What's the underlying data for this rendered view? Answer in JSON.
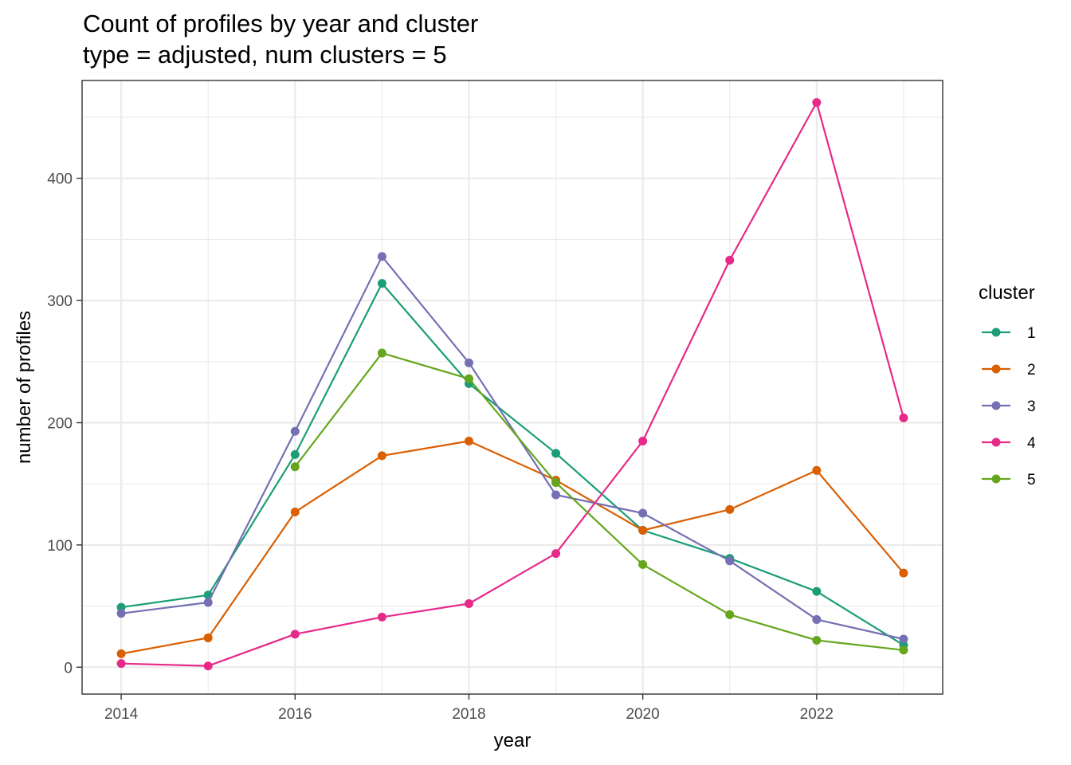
{
  "chart_data": {
    "type": "line",
    "title": "Count of profiles by year and cluster",
    "subtitle": "type = adjusted, num clusters = 5",
    "xlabel": "year",
    "ylabel": "number of profiles",
    "xlim": [
      2013.55,
      2023.45
    ],
    "ylim": [
      -22,
      480
    ],
    "x_ticks": [
      2014,
      2016,
      2018,
      2020,
      2022
    ],
    "x_tick_labels": [
      "2014",
      "2016",
      "2018",
      "2020",
      "2022"
    ],
    "x_minor_ticks": [
      2015,
      2017,
      2019,
      2021,
      2023
    ],
    "y_ticks": [
      0,
      100,
      200,
      300,
      400
    ],
    "y_tick_labels": [
      "0",
      "100",
      "200",
      "300",
      "400"
    ],
    "y_minor_ticks": [
      50,
      150,
      250,
      350,
      450
    ],
    "grid": true,
    "legend": {
      "title": "cluster",
      "position": "right"
    },
    "series": [
      {
        "name": "1",
        "color": "#1b9e77",
        "x": [
          2014,
          2015,
          2016,
          2017,
          2018,
          2019,
          2020,
          2021,
          2022,
          2023
        ],
        "values": [
          49,
          59,
          174,
          314,
          232,
          175,
          112,
          89,
          62,
          18
        ]
      },
      {
        "name": "2",
        "color": "#d95f02",
        "x": [
          2014,
          2015,
          2016,
          2017,
          2018,
          2019,
          2020,
          2021,
          2022,
          2023
        ],
        "values": [
          11,
          24,
          127,
          173,
          185,
          153,
          112,
          129,
          161,
          77
        ]
      },
      {
        "name": "3",
        "color": "#7570b3",
        "x": [
          2014,
          2015,
          2016,
          2017,
          2018,
          2019,
          2020,
          2021,
          2022,
          2023
        ],
        "values": [
          44,
          53,
          193,
          336,
          249,
          141,
          126,
          87,
          39,
          23
        ]
      },
      {
        "name": "4",
        "color": "#e7298a",
        "x": [
          2014,
          2015,
          2016,
          2017,
          2018,
          2019,
          2020,
          2021,
          2022,
          2023
        ],
        "values": [
          3,
          1,
          27,
          41,
          52,
          93,
          185,
          333,
          462,
          204
        ]
      },
      {
        "name": "5",
        "color": "#66a61e",
        "x": [
          2016,
          2017,
          2018,
          2019,
          2020,
          2021,
          2022,
          2023
        ],
        "values": [
          164,
          257,
          236,
          151,
          84,
          43,
          22,
          14
        ]
      }
    ]
  }
}
